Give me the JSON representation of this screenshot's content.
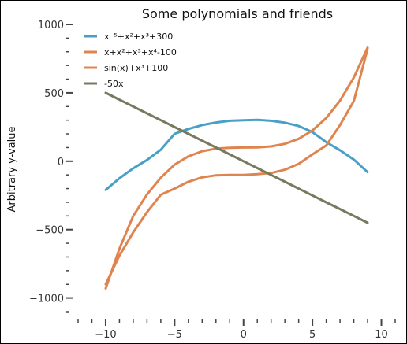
{
  "chart_data": {
    "type": "line",
    "title": "Some polynomials and friends",
    "xlabel": "",
    "ylabel": "Arbitrary y-value",
    "xlim": [
      -12,
      11
    ],
    "ylim": [
      -1100,
      1000
    ],
    "x_ticks": [
      -10,
      -5,
      0,
      5,
      10
    ],
    "x_tick_labels": [
      "−10",
      "−5",
      "0",
      "5",
      "10"
    ],
    "y_ticks": [
      -1000,
      -500,
      0,
      500,
      1000
    ],
    "y_tick_labels": [
      "−1000",
      "−500",
      "0",
      "500",
      "1000"
    ],
    "grid": false,
    "legend_position": "top-left",
    "x": [
      -10,
      -9,
      -8,
      -7,
      -6,
      -5,
      -4,
      -3,
      -2,
      -1,
      0,
      1,
      2,
      3,
      4,
      5,
      6,
      7,
      8,
      9
    ],
    "series": [
      {
        "name": "x⁻⁵+x²+x³+300",
        "color": "#4a9fc7",
        "values": [
          -210,
          -125,
          -52,
          9,
          84,
          200,
          236,
          264,
          283,
          296,
          300,
          302,
          296,
          282,
          257,
          213,
          140,
          80,
          12,
          -80
        ]
      },
      {
        "name": "x+x²+x³+x⁴-100",
        "color": "#e0844f",
        "values": [
          -900,
          -690,
          -520,
          -372,
          -245,
          -200,
          -150,
          -118,
          -103,
          -100,
          -100,
          -95,
          -86,
          -62,
          -19,
          50,
          115,
          265,
          440,
          820
        ]
      },
      {
        "name": "sin(x)+x³+100",
        "color": "#e0844f",
        "values": [
          -930,
          -640,
          -400,
          -243,
          -120,
          -25,
          36,
          73,
          92,
          98,
          100,
          101,
          108,
          127,
          164,
          225,
          316,
          443,
          612,
          830
        ]
      },
      {
        "name": "-50x",
        "color": "#777a5f",
        "values": [
          500,
          450,
          400,
          350,
          300,
          250,
          200,
          150,
          100,
          50,
          0,
          -50,
          -100,
          -150,
          -200,
          -250,
          -300,
          -350,
          -400,
          -450
        ]
      }
    ]
  }
}
